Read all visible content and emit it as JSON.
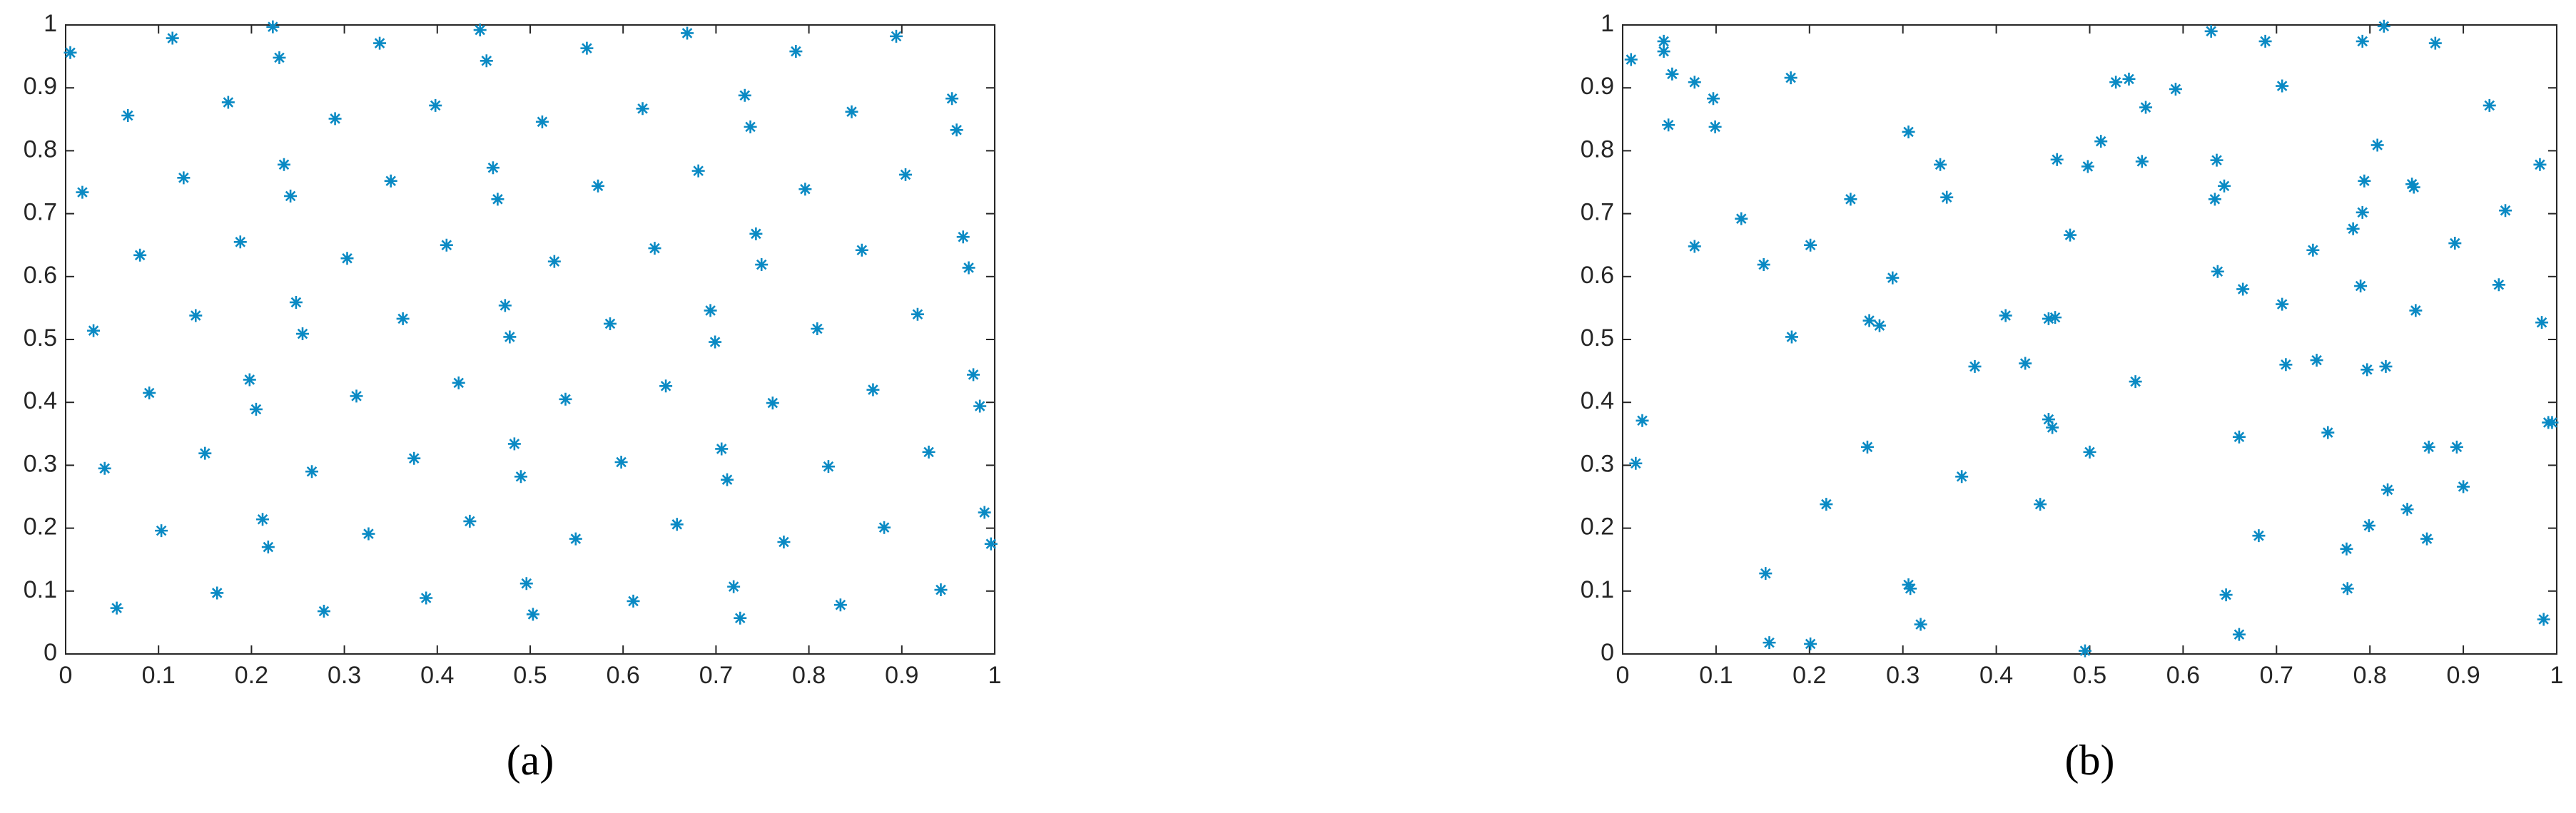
{
  "chart_data": [
    {
      "type": "scatter",
      "caption": "(a)",
      "color": "#0a8ac4",
      "x": [
        0.005,
        0.018,
        0.03,
        0.042,
        0.055,
        0.067,
        0.08,
        0.09,
        0.103,
        0.115,
        0.127,
        0.14,
        0.15,
        0.163,
        0.175,
        0.188,
        0.198,
        0.205,
        0.212,
        0.218,
        0.223,
        0.23,
        0.235,
        0.242,
        0.248,
        0.255,
        0.265,
        0.278,
        0.29,
        0.303,
        0.313,
        0.326,
        0.338,
        0.35,
        0.363,
        0.375,
        0.388,
        0.398,
        0.41,
        0.423,
        0.435,
        0.446,
        0.453,
        0.46,
        0.465,
        0.473,
        0.478,
        0.483,
        0.49,
        0.496,
        0.503,
        0.513,
        0.526,
        0.538,
        0.549,
        0.561,
        0.573,
        0.586,
        0.598,
        0.611,
        0.621,
        0.634,
        0.646,
        0.658,
        0.669,
        0.681,
        0.694,
        0.699,
        0.706,
        0.712,
        0.719,
        0.726,
        0.731,
        0.737,
        0.743,
        0.749,
        0.761,
        0.773,
        0.786,
        0.796,
        0.809,
        0.821,
        0.834,
        0.846,
        0.857,
        0.869,
        0.881,
        0.894,
        0.904,
        0.917,
        0.929,
        0.942,
        0.954,
        0.959,
        0.966,
        0.972,
        0.977,
        0.984,
        0.989,
        0.996
      ],
      "values": [
        0.956,
        0.734,
        0.514,
        0.295,
        0.073,
        0.856,
        0.634,
        0.415,
        0.196,
        0.979,
        0.757,
        0.538,
        0.319,
        0.097,
        0.877,
        0.655,
        0.436,
        0.389,
        0.214,
        0.17,
        0.997,
        0.948,
        0.778,
        0.728,
        0.559,
        0.509,
        0.29,
        0.068,
        0.851,
        0.629,
        0.41,
        0.191,
        0.971,
        0.752,
        0.533,
        0.311,
        0.089,
        0.872,
        0.65,
        0.431,
        0.211,
        0.992,
        0.943,
        0.773,
        0.723,
        0.554,
        0.504,
        0.334,
        0.282,
        0.112,
        0.063,
        0.846,
        0.624,
        0.405,
        0.183,
        0.963,
        0.744,
        0.525,
        0.305,
        0.084,
        0.867,
        0.645,
        0.426,
        0.206,
        0.987,
        0.768,
        0.546,
        0.496,
        0.326,
        0.277,
        0.107,
        0.057,
        0.888,
        0.838,
        0.668,
        0.619,
        0.399,
        0.178,
        0.958,
        0.739,
        0.517,
        0.298,
        0.078,
        0.862,
        0.642,
        0.42,
        0.201,
        0.982,
        0.762,
        0.54,
        0.321,
        0.102,
        0.883,
        0.833,
        0.663,
        0.614,
        0.444,
        0.394,
        0.225,
        0.175
      ],
      "xlim": [
        0,
        1
      ],
      "ylim": [
        0,
        1
      ],
      "xticks": [
        0,
        0.1,
        0.2,
        0.3,
        0.4,
        0.5,
        0.6,
        0.7,
        0.8,
        0.9,
        1
      ],
      "yticks": [
        0,
        0.1,
        0.2,
        0.3,
        0.4,
        0.5,
        0.6,
        0.7,
        0.8,
        0.9,
        1
      ]
    },
    {
      "type": "scatter",
      "caption": "(b)",
      "color": "#0a8ac4",
      "x": [
        0.009,
        0.021,
        0.014,
        0.044,
        0.044,
        0.053,
        0.049,
        0.077,
        0.097,
        0.099,
        0.077,
        0.127,
        0.151,
        0.18,
        0.181,
        0.153,
        0.157,
        0.201,
        0.201,
        0.218,
        0.244,
        0.262,
        0.264,
        0.275,
        0.289,
        0.306,
        0.306,
        0.308,
        0.319,
        0.34,
        0.347,
        0.363,
        0.377,
        0.41,
        0.431,
        0.447,
        0.456,
        0.463,
        0.456,
        0.46,
        0.465,
        0.479,
        0.495,
        0.498,
        0.5,
        0.512,
        0.528,
        0.542,
        0.549,
        0.556,
        0.56,
        0.592,
        0.63,
        0.634,
        0.636,
        0.637,
        0.644,
        0.646,
        0.66,
        0.664,
        0.66,
        0.688,
        0.681,
        0.706,
        0.706,
        0.71,
        0.743,
        0.739,
        0.755,
        0.775,
        0.776,
        0.782,
        0.792,
        0.79,
        0.792,
        0.794,
        0.797,
        0.799,
        0.808,
        0.815,
        0.817,
        0.819,
        0.84,
        0.845,
        0.847,
        0.849,
        0.861,
        0.863,
        0.87,
        0.891,
        0.893,
        0.9,
        0.928,
        0.938,
        0.945,
        0.982,
        0.984,
        0.986,
        0.991,
        0.995
      ],
      "values": [
        0.945,
        0.371,
        0.303,
        0.974,
        0.958,
        0.922,
        0.841,
        0.909,
        0.883,
        0.838,
        0.648,
        0.692,
        0.619,
        0.916,
        0.504,
        0.128,
        0.018,
        0.016,
        0.65,
        0.238,
        0.723,
        0.329,
        0.53,
        0.522,
        0.598,
        0.83,
        0.11,
        0.104,
        0.047,
        0.778,
        0.726,
        0.282,
        0.457,
        0.538,
        0.462,
        0.238,
        0.533,
        0.535,
        0.373,
        0.36,
        0.786,
        0.666,
        0.005,
        0.775,
        0.321,
        0.815,
        0.909,
        0.914,
        0.433,
        0.783,
        0.869,
        0.898,
        0.99,
        0.723,
        0.785,
        0.608,
        0.744,
        0.094,
        0.345,
        0.58,
        0.031,
        0.974,
        0.188,
        0.903,
        0.556,
        0.46,
        0.467,
        0.642,
        0.352,
        0.167,
        0.104,
        0.676,
        0.974,
        0.585,
        0.702,
        0.752,
        0.452,
        0.204,
        0.809,
        0.998,
        0.457,
        0.261,
        0.23,
        0.747,
        0.742,
        0.546,
        0.183,
        0.329,
        0.971,
        0.653,
        0.329,
        0.266,
        0.872,
        0.587,
        0.705,
        0.778,
        0.527,
        0.055,
        0.368,
        0.368
      ],
      "xlim": [
        0,
        1
      ],
      "ylim": [
        0,
        1
      ],
      "xticks": [
        0,
        0.1,
        0.2,
        0.3,
        0.4,
        0.5,
        0.6,
        0.7,
        0.8,
        0.9,
        1
      ],
      "yticks": [
        0,
        0.1,
        0.2,
        0.3,
        0.4,
        0.5,
        0.6,
        0.7,
        0.8,
        0.9,
        1
      ]
    }
  ]
}
